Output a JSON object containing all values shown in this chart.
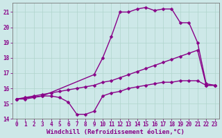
{
  "background_color": "#cde8e8",
  "grid_color": "#b0d4cc",
  "line_color": "#880088",
  "markersize": 2.5,
  "linewidth": 1.0,
  "xlim": [
    -0.5,
    23.5
  ],
  "ylim": [
    14,
    21.6
  ],
  "yticks": [
    14,
    15,
    16,
    17,
    18,
    19,
    20,
    21
  ],
  "xticks": [
    0,
    1,
    2,
    3,
    4,
    5,
    6,
    7,
    8,
    9,
    10,
    11,
    12,
    13,
    14,
    15,
    16,
    17,
    18,
    19,
    20,
    21,
    22,
    23
  ],
  "xlabel": "Windchill (Refroidissement éolien,°C)",
  "xlabel_fontsize": 6.5,
  "tick_fontsize": 5.5,
  "series1_x": [
    0,
    1,
    2,
    3,
    4,
    5,
    6,
    7,
    8,
    9,
    10,
    11,
    12,
    13,
    14,
    15,
    16,
    17,
    18,
    19,
    20,
    21,
    22,
    23
  ],
  "series1_y": [
    15.3,
    15.3,
    15.4,
    15.5,
    15.5,
    15.4,
    15.1,
    14.3,
    14.3,
    14.5,
    15.5,
    15.7,
    15.8,
    16.0,
    16.1,
    16.2,
    16.3,
    16.4,
    16.4,
    16.5,
    16.5,
    16.5,
    16.2,
    16.2
  ],
  "series2_x": [
    0,
    1,
    2,
    3,
    4,
    5,
    6,
    7,
    8,
    9,
    10,
    11,
    12,
    13,
    14,
    15,
    16,
    17,
    18,
    19,
    20,
    21,
    22,
    23
  ],
  "series2_y": [
    15.3,
    15.4,
    15.5,
    15.6,
    15.7,
    15.8,
    15.9,
    16.0,
    16.1,
    16.2,
    16.4,
    16.5,
    16.7,
    16.9,
    17.1,
    17.3,
    17.5,
    17.7,
    17.9,
    18.1,
    18.3,
    18.5,
    16.2,
    16.2
  ],
  "series3_x": [
    0,
    3,
    9,
    10,
    11,
    12,
    13,
    14,
    15,
    16,
    17,
    18,
    19,
    20,
    21,
    22,
    23
  ],
  "series3_y": [
    15.3,
    15.5,
    16.9,
    18.0,
    19.4,
    21.0,
    21.0,
    21.2,
    21.3,
    21.1,
    21.2,
    21.2,
    20.3,
    20.3,
    19.0,
    16.3,
    16.2
  ]
}
